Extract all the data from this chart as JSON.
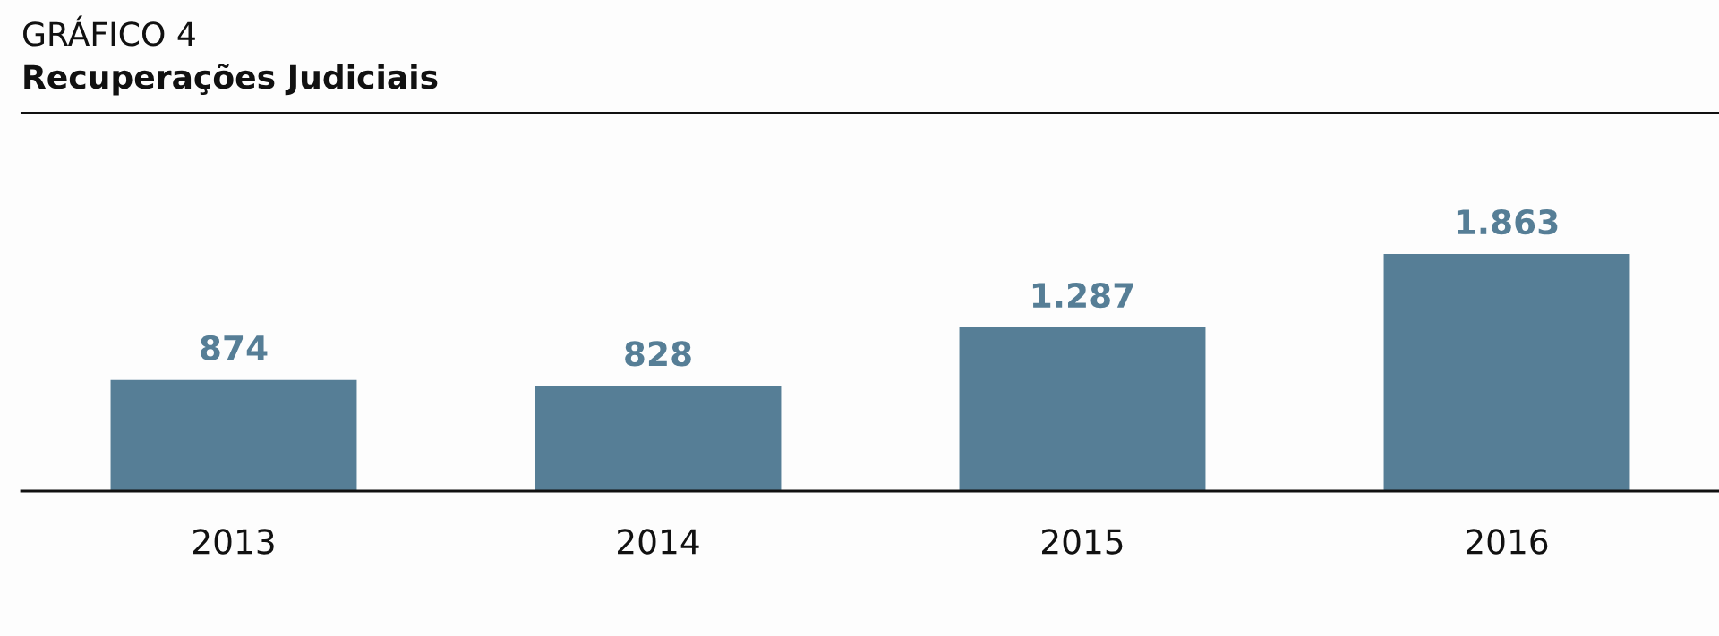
{
  "chart_data": {
    "type": "bar",
    "title": "GRÁFICO 4",
    "subtitle": "Recuperações Judiciais",
    "categories": [
      "2013",
      "2014",
      "2015",
      "2016"
    ],
    "values": [
      874,
      828,
      1287,
      1863
    ],
    "value_labels": [
      "874",
      "828",
      "1.287",
      "1.863"
    ],
    "color": "#567e96"
  }
}
